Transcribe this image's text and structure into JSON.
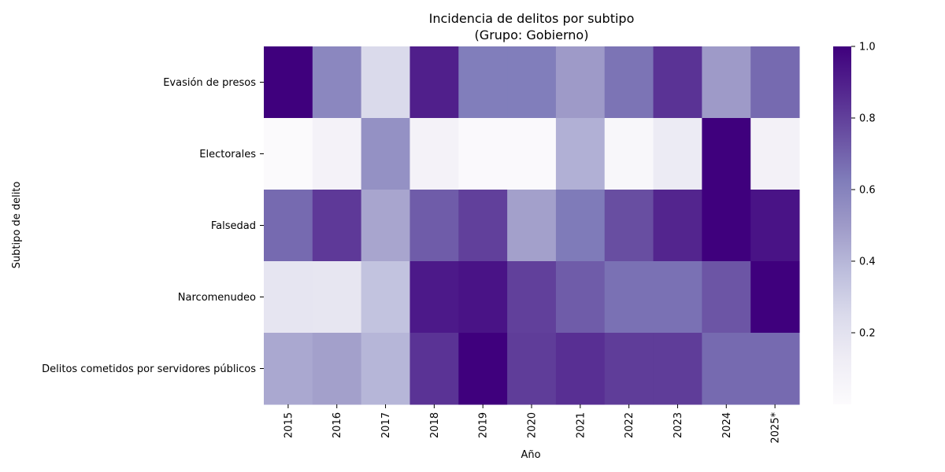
{
  "chart_data": {
    "type": "heatmap",
    "title": "Incidencia de delitos por subtipo",
    "subtitle": "(Grupo: Gobierno)",
    "xlabel": "Año",
    "ylabel": "Subtipo de delito",
    "x": [
      "2015",
      "2016",
      "2017",
      "2018",
      "2019",
      "2020",
      "2021",
      "2022",
      "2023",
      "2024",
      "2025*"
    ],
    "y": [
      "Evasión de presos",
      "Electorales",
      "Falsedad",
      "Narcomenudeo",
      "Delitos cometidos por servidores públicos"
    ],
    "values": [
      [
        1.0,
        0.58,
        0.25,
        0.9,
        0.62,
        0.62,
        0.5,
        0.65,
        0.84,
        0.5,
        0.68
      ],
      [
        0.01,
        0.08,
        0.54,
        0.08,
        0.02,
        0.02,
        0.42,
        0.04,
        0.14,
        1.0,
        0.09
      ],
      [
        0.68,
        0.82,
        0.46,
        0.72,
        0.8,
        0.48,
        0.63,
        0.76,
        0.88,
        1.0,
        0.94
      ],
      [
        0.18,
        0.17,
        0.35,
        0.92,
        0.94,
        0.8,
        0.72,
        0.66,
        0.66,
        0.74,
        1.0
      ],
      [
        0.45,
        0.48,
        0.4,
        0.84,
        1.0,
        0.81,
        0.85,
        0.81,
        0.81,
        0.68,
        0.68
      ]
    ],
    "colorbar": {
      "min": 0,
      "max": 1,
      "ticks": [
        "0.2",
        "0.4",
        "0.6",
        "0.8",
        "1.0"
      ],
      "tick_values": [
        0.2,
        0.4,
        0.6,
        0.8,
        1.0
      ],
      "colormap": "Purples",
      "low_color": "#fcfbfd",
      "high_color": "#3f007d"
    }
  }
}
